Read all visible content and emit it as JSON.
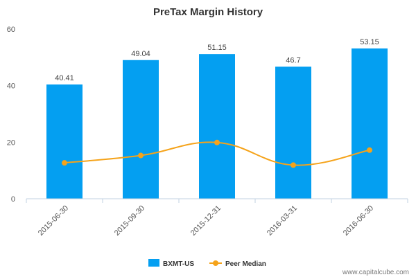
{
  "chart_data": {
    "type": "bar",
    "title": "PreTax Margin History",
    "categories": [
      "2015-06-30",
      "2015-09-30",
      "2015-12-31",
      "2016-03-31",
      "2016-06-30"
    ],
    "series": [
      {
        "name": "BXMT-US",
        "type": "bar",
        "values": [
          40.41,
          49.04,
          51.15,
          46.7,
          53.15
        ],
        "labels": [
          "40.41",
          "49.04",
          "51.15",
          "46.7",
          "53.15"
        ],
        "color": "#049ff1"
      },
      {
        "name": "Peer Median",
        "type": "line",
        "values": [
          12.7,
          15.3,
          19.9,
          11.9,
          17.2
        ],
        "color": "#f5a31a"
      }
    ],
    "yticks": [
      "0",
      "20",
      "40",
      "60"
    ],
    "ylim": [
      0,
      60
    ],
    "grid": false,
    "legend": "bottom-center"
  },
  "watermark": "www.capitalcube.com"
}
